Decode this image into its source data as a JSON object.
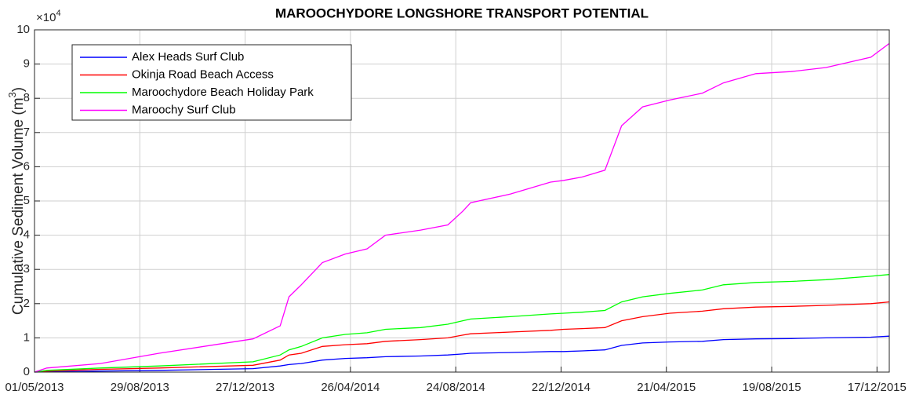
{
  "chart_data": {
    "type": "line",
    "title": "MAROOCHYDORE LONGSHORE TRANSPORT POTENTIAL",
    "ylabel": "Cumulative Sediment Volume (m",
    "ylabel_sup": "3",
    "ylabel_end": ")",
    "y_multiplier": "×10",
    "y_multiplier_power": "4",
    "x": [
      "01/05/2013",
      "15/05/2013",
      "15/07/2013",
      "20/09/2013",
      "05/01/2014",
      "05/02/2014",
      "15/02/2014",
      "01/03/2014",
      "25/03/2014",
      "20/04/2014",
      "15/05/2014",
      "05/06/2014",
      "15/07/2014",
      "15/08/2014",
      "01/09/2014",
      "10/09/2014",
      "25/10/2014",
      "10/12/2014",
      "25/12/2014",
      "15/01/2015",
      "10/02/2015",
      "01/03/2015",
      "25/03/2015",
      "25/04/2015",
      "01/06/2015",
      "25/06/2015",
      "01/08/2015",
      "10/09/2015",
      "20/10/2015",
      "10/12/2015",
      "31/12/2015"
    ],
    "series": [
      {
        "name": "Alex Heads Surf Club",
        "color": "#0000ff",
        "values": [
          0,
          0.01,
          0.03,
          0.05,
          0.1,
          0.18,
          0.22,
          0.25,
          0.35,
          0.4,
          0.42,
          0.45,
          0.47,
          0.5,
          0.53,
          0.55,
          0.57,
          0.6,
          0.6,
          0.62,
          0.65,
          0.78,
          0.85,
          0.88,
          0.9,
          0.95,
          0.97,
          0.98,
          1.0,
          1.02,
          1.05
        ]
      },
      {
        "name": "Okinja Road Beach Access",
        "color": "#ff0000",
        "values": [
          0,
          0.03,
          0.08,
          0.12,
          0.2,
          0.35,
          0.5,
          0.55,
          0.75,
          0.8,
          0.83,
          0.9,
          0.95,
          1.0,
          1.08,
          1.12,
          1.17,
          1.22,
          1.25,
          1.27,
          1.3,
          1.5,
          1.62,
          1.72,
          1.78,
          1.85,
          1.9,
          1.92,
          1.95,
          2.0,
          2.05
        ]
      },
      {
        "name": "Maroochydore Beach Holiday Park",
        "color": "#00ff00",
        "values": [
          0,
          0.05,
          0.12,
          0.18,
          0.3,
          0.5,
          0.65,
          0.75,
          1.0,
          1.1,
          1.15,
          1.25,
          1.3,
          1.4,
          1.5,
          1.55,
          1.62,
          1.7,
          1.72,
          1.75,
          1.8,
          2.05,
          2.2,
          2.3,
          2.4,
          2.55,
          2.62,
          2.65,
          2.7,
          2.8,
          2.85
        ]
      },
      {
        "name": "Maroochy Surf Club",
        "color": "#ff00ff",
        "values": [
          0,
          0.12,
          0.25,
          0.55,
          0.97,
          1.35,
          2.2,
          2.55,
          3.2,
          3.45,
          3.6,
          4.0,
          4.15,
          4.3,
          4.7,
          4.95,
          5.2,
          5.55,
          5.6,
          5.7,
          5.9,
          7.2,
          7.75,
          7.95,
          8.15,
          8.45,
          8.72,
          8.78,
          8.9,
          9.2,
          9.6
        ]
      }
    ],
    "xlim": [
      "01/05/2013",
      "31/12/2015"
    ],
    "xticks": [
      "01/05/2013",
      "29/08/2013",
      "27/12/2013",
      "26/04/2014",
      "24/08/2014",
      "22/12/2014",
      "21/04/2015",
      "19/08/2015",
      "17/12/2015"
    ],
    "ylim": [
      0,
      10
    ],
    "yticks": [
      0,
      1,
      2,
      3,
      4,
      5,
      6,
      7,
      8,
      9,
      10
    ],
    "grid": true,
    "legend": "upper left"
  }
}
